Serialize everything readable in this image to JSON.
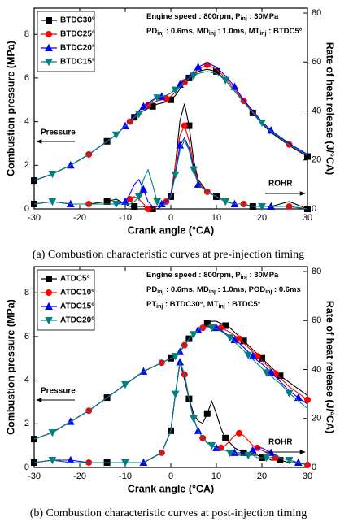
{
  "chart_data": [
    {
      "type": "line",
      "x_label": "Crank angle (°CA)",
      "y_label": "Combustion pressure (MPa)",
      "y2_label": "Rate of heat release (J/°CA)",
      "x": [
        -30,
        -26,
        -22,
        -18,
        -14,
        -12,
        -10,
        -9,
        -8,
        -7,
        -6,
        -5,
        -4,
        -3,
        -2,
        -1,
        0,
        1,
        2,
        3,
        4,
        5,
        6,
        8,
        10,
        12,
        14,
        16,
        18,
        20,
        22,
        26,
        30
      ],
      "xlim": [
        -30,
        30
      ],
      "xticks": [
        -30,
        -20,
        -10,
        0,
        10,
        20,
        30
      ],
      "ylim": [
        0,
        9.2
      ],
      "yticks": [
        0,
        2,
        4,
        6,
        8
      ],
      "y2lim": [
        0,
        82
      ],
      "y2ticks": [
        0,
        20,
        40,
        60,
        80
      ],
      "series": [
        {
          "name": "BTDC30°",
          "color": "#000000",
          "marker": "square",
          "pressure": [
            1.3,
            1.6,
            2.0,
            2.5,
            3.1,
            3.4,
            3.8,
            4.0,
            4.2,
            4.35,
            4.5,
            4.6,
            4.7,
            4.8,
            4.85,
            4.9,
            5.0,
            5.2,
            5.5,
            5.8,
            6.0,
            6.2,
            6.3,
            6.4,
            6.3,
            5.9,
            5.4,
            4.9,
            4.4,
            3.9,
            3.5,
            2.9,
            2.4
          ],
          "rohr": [
            2,
            3,
            2,
            2,
            3,
            4,
            2,
            1,
            1,
            1,
            1,
            0,
            0,
            0,
            1,
            2,
            5,
            18,
            36,
            43,
            34,
            20,
            12,
            7,
            5,
            3,
            2,
            2,
            1,
            1,
            1,
            3,
            0
          ]
        },
        {
          "name": "BTDC25°",
          "color": "#ff0000",
          "marker": "circle",
          "pressure": [
            1.3,
            1.6,
            2.0,
            2.5,
            3.1,
            3.4,
            3.8,
            4.0,
            4.2,
            4.4,
            4.6,
            4.75,
            4.85,
            4.95,
            5.0,
            5.05,
            5.15,
            5.35,
            5.6,
            5.8,
            6.0,
            6.2,
            6.4,
            6.6,
            6.4,
            6.0,
            5.5,
            4.95,
            4.45,
            3.95,
            3.55,
            2.95,
            2.45
          ],
          "rohr": [
            2,
            3,
            2,
            2,
            2,
            2,
            3,
            4,
            5,
            4,
            2,
            0,
            0,
            1,
            2,
            3,
            6,
            18,
            30,
            34,
            28,
            18,
            11,
            7,
            5,
            3,
            2,
            2,
            1,
            1,
            1,
            1,
            0
          ]
        },
        {
          "name": "BTDC20°",
          "color": "#0000ff",
          "marker": "triangle-up",
          "pressure": [
            1.3,
            1.6,
            2.0,
            2.5,
            3.1,
            3.4,
            3.8,
            4.0,
            4.3,
            4.5,
            4.7,
            4.85,
            5.0,
            5.1,
            5.15,
            5.2,
            5.3,
            5.5,
            5.7,
            5.9,
            6.1,
            6.3,
            6.5,
            6.7,
            6.5,
            6.1,
            5.6,
            5.0,
            4.5,
            4.0,
            3.6,
            3.0,
            2.5
          ],
          "rohr": [
            2,
            3,
            2,
            2,
            2,
            2,
            3,
            6,
            10,
            12,
            8,
            3,
            1,
            1,
            2,
            3,
            6,
            15,
            26,
            29,
            25,
            17,
            10,
            7,
            5,
            3,
            2,
            2,
            1,
            1,
            1,
            1,
            0
          ]
        },
        {
          "name": "BTDC15°",
          "color": "#008080",
          "marker": "triangle-down",
          "pressure": [
            1.3,
            1.6,
            2.0,
            2.5,
            3.1,
            3.4,
            3.8,
            4.0,
            4.2,
            4.35,
            4.5,
            4.7,
            4.95,
            5.1,
            5.15,
            5.2,
            5.3,
            5.45,
            5.6,
            5.8,
            6.0,
            6.1,
            6.2,
            6.3,
            6.2,
            5.9,
            5.4,
            4.9,
            4.4,
            3.95,
            3.55,
            2.95,
            2.45
          ],
          "rohr": [
            2,
            3,
            2,
            2,
            2,
            2,
            2,
            2,
            3,
            5,
            12,
            16,
            10,
            3,
            1,
            2,
            5,
            14,
            24,
            28,
            24,
            16,
            10,
            7,
            5,
            3,
            2,
            2,
            1,
            1,
            1,
            1,
            0
          ]
        }
      ],
      "conditions": [
        [
          "Engine speed : 800rpm, P",
          "inj",
          " : 30MPa"
        ],
        [
          "PD",
          "inj",
          " : 0.6ms, MD",
          "inj",
          " : 1.0ms, MT",
          "inj",
          " : BTDC5°"
        ]
      ],
      "annotations": [
        "Pressure",
        "ROHR"
      ],
      "caption": "(a) Combustion characteristic curves at pre-injection timing"
    },
    {
      "type": "line",
      "x_label": "Crank angle (°CA)",
      "y_label": "Combustion pressure (MPa)",
      "y2_label": "Rate of heat release (J/°CA)",
      "x": [
        -30,
        -26,
        -22,
        -18,
        -14,
        -10,
        -6,
        -2,
        0,
        1,
        2,
        3,
        4,
        5,
        6,
        7,
        8,
        9,
        10,
        11,
        12,
        13,
        14,
        15,
        16,
        17,
        18,
        19,
        20,
        21,
        22,
        23,
        24,
        26,
        28,
        30
      ],
      "xlim": [
        -30,
        30
      ],
      "xticks": [
        -30,
        -20,
        -10,
        0,
        10,
        20,
        30
      ],
      "ylim": [
        0,
        9.2
      ],
      "yticks": [
        0,
        2,
        4,
        6,
        8
      ],
      "y2lim": [
        0,
        82
      ],
      "y2ticks": [
        0,
        20,
        40,
        60,
        80
      ],
      "series": [
        {
          "name": "ATDC5°",
          "color": "#000000",
          "marker": "square",
          "pressure": [
            1.3,
            1.6,
            2.1,
            2.6,
            3.2,
            3.8,
            4.4,
            4.8,
            5.0,
            5.1,
            5.3,
            5.6,
            5.9,
            6.1,
            6.3,
            6.4,
            6.6,
            6.7,
            6.7,
            6.6,
            6.5,
            6.4,
            6.2,
            6.0,
            5.8,
            5.6,
            5.4,
            5.2,
            5.0,
            4.8,
            4.6,
            4.4,
            4.2,
            3.9,
            3.6,
            3.3
          ],
          "rohr": [
            2,
            3,
            2,
            2,
            2,
            2,
            2,
            6,
            15,
            30,
            43,
            36,
            28,
            22,
            19,
            18,
            22,
            27,
            22,
            16,
            12,
            10,
            8,
            7,
            6,
            6,
            5,
            5,
            4,
            4,
            3,
            3,
            3,
            2,
            2,
            1
          ]
        },
        {
          "name": "ATDC10°",
          "color": "#ff0000",
          "marker": "circle",
          "pressure": [
            1.3,
            1.6,
            2.1,
            2.6,
            3.2,
            3.8,
            4.4,
            4.8,
            5.0,
            5.1,
            5.3,
            5.6,
            5.9,
            6.1,
            6.3,
            6.4,
            6.5,
            6.55,
            6.5,
            6.4,
            6.3,
            6.2,
            6.05,
            5.9,
            5.7,
            5.5,
            5.3,
            5.1,
            4.9,
            4.7,
            4.5,
            4.3,
            4.1,
            3.7,
            3.4,
            3.1
          ],
          "rohr": [
            2,
            3,
            2,
            2,
            2,
            2,
            2,
            6,
            15,
            30,
            43,
            38,
            28,
            20,
            15,
            12,
            10,
            9,
            8,
            8,
            9,
            11,
            13,
            14,
            13,
            11,
            9,
            8,
            7,
            6,
            5,
            4,
            4,
            3,
            2,
            1
          ]
        },
        {
          "name": "ATDC15°",
          "color": "#0000ff",
          "marker": "triangle-up",
          "pressure": [
            1.3,
            1.6,
            2.1,
            2.6,
            3.2,
            3.8,
            4.4,
            4.8,
            5.0,
            5.1,
            5.3,
            5.6,
            5.9,
            6.1,
            6.3,
            6.4,
            6.45,
            6.45,
            6.4,
            6.3,
            6.15,
            6.0,
            5.85,
            5.7,
            5.5,
            5.3,
            5.1,
            4.9,
            4.75,
            4.55,
            4.35,
            4.15,
            3.95,
            3.5,
            3.2,
            2.9
          ],
          "rohr": [
            2,
            3,
            3,
            2,
            2,
            2,
            2,
            6,
            15,
            30,
            43,
            38,
            28,
            20,
            15,
            12,
            10,
            9,
            8,
            7,
            7,
            7,
            6,
            6,
            6,
            6,
            7,
            8,
            8,
            7,
            6,
            5,
            4,
            3,
            2,
            1
          ]
        },
        {
          "name": "ATDC20°",
          "color": "#008080",
          "marker": "triangle-down",
          "pressure": [
            1.3,
            1.6,
            2.1,
            2.6,
            3.2,
            3.8,
            4.4,
            4.8,
            5.0,
            5.1,
            5.3,
            5.6,
            5.9,
            6.1,
            6.3,
            6.4,
            6.45,
            6.4,
            6.35,
            6.25,
            6.1,
            5.95,
            5.75,
            5.55,
            5.35,
            5.15,
            4.95,
            4.75,
            4.55,
            4.35,
            4.2,
            4.0,
            3.85,
            3.4,
            3.05,
            2.7
          ],
          "rohr": [
            2,
            3,
            2,
            2,
            2,
            2,
            2,
            6,
            15,
            30,
            43,
            38,
            28,
            20,
            15,
            12,
            10,
            9,
            8,
            7,
            7,
            6,
            6,
            5,
            5,
            5,
            5,
            4,
            4,
            4,
            4,
            5,
            4,
            3,
            2,
            1
          ]
        }
      ],
      "conditions": [
        [
          "Engine speed : 800rpm, P",
          "inj",
          " : 30MPa"
        ],
        [
          "PD",
          "inj",
          " : 0.6ms, MD",
          "inj",
          " : 1.0ms, POD",
          "inj",
          " : 0.6ms"
        ],
        [
          "PT",
          "inj",
          " : BTDC30°, MT",
          "inj",
          " : BTDC5°"
        ]
      ],
      "annotations": [
        "Pressure",
        "ROHR"
      ],
      "caption": "(b) Combustion characteristic curves at post-injection timing"
    }
  ]
}
